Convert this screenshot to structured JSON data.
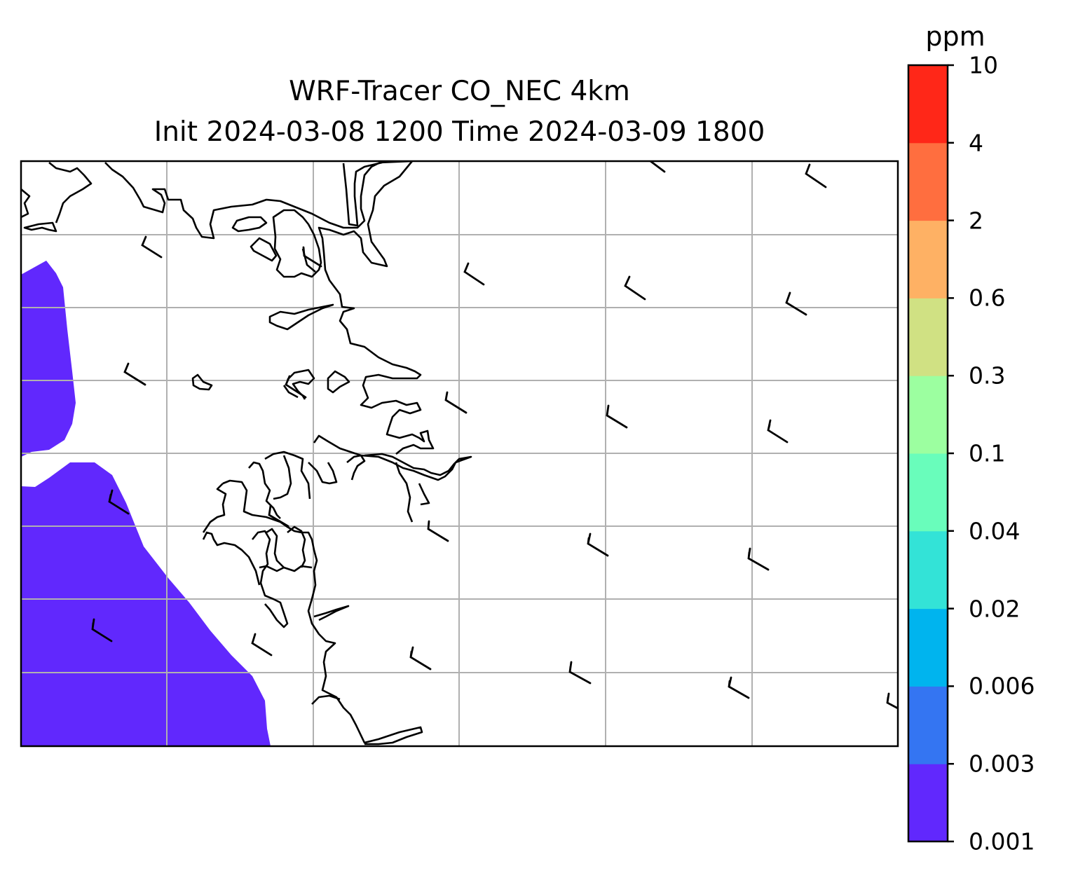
{
  "title": {
    "line1": "WRF-Tracer CO_NEC 4km",
    "line2": "Init 2024-03-08 1200 Time 2024-03-09 1800"
  },
  "colorbar": {
    "unit": "ppm",
    "ticks": [
      "0.001",
      "0.003",
      "0.006",
      "0.02",
      "0.04",
      "0.1",
      "0.3",
      "0.6",
      "2",
      "4",
      "10"
    ],
    "colors": [
      "#6128fd",
      "#3475f2",
      "#00b4ee",
      "#33e3d7",
      "#69fdbb",
      "#9cffa0",
      "#d0e183",
      "#feb164",
      "#ff6e3f",
      "#ff2718"
    ]
  },
  "map": {
    "field_color": "#6128fd",
    "coastline_color": "#000000",
    "grid_color": "#b0b0b0",
    "wind_barbs": "black"
  }
}
